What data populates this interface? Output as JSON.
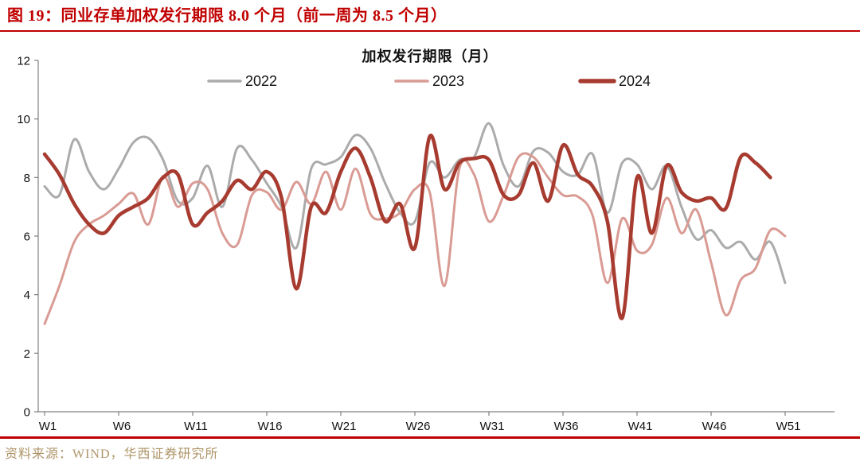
{
  "header": {
    "title": "图 19：同业存单加权发行期限 8.0 个月（前一周为 8.5 个月）"
  },
  "footer": {
    "source": "资料来源：WIND，华西证券研究所"
  },
  "colors": {
    "accent_red": "#c00000",
    "source_tan": "#ae9467",
    "axis_gray": "#808080",
    "series_2022": "#ababab",
    "series_2023": "#d99b94",
    "series_2024": "#a73b30"
  },
  "chart_data": {
    "type": "line",
    "title": "加权发行期限（月）",
    "xlabel": "",
    "ylabel": "",
    "grid": false,
    "legend_position": "top",
    "ylim": [
      0,
      12
    ],
    "y_ticks": [
      0,
      2,
      4,
      6,
      8,
      10,
      12
    ],
    "x_tick_weeks": [
      1,
      6,
      11,
      16,
      21,
      26,
      31,
      36,
      41,
      46,
      51
    ],
    "x_tick_labels": [
      "W1",
      "W6",
      "W11",
      "W16",
      "W21",
      "W26",
      "W31",
      "W36",
      "W41",
      "W46",
      "W51"
    ],
    "x_unit": "week",
    "series": [
      {
        "name": "2022",
        "color": "#ababab",
        "line_width": 3,
        "start_week": 1,
        "values": [
          7.7,
          7.4,
          9.3,
          8.2,
          7.6,
          8.3,
          9.2,
          9.35,
          8.6,
          7.2,
          7.3,
          8.4,
          7.0,
          9.0,
          8.6,
          7.8,
          7.0,
          5.6,
          8.3,
          8.45,
          8.7,
          9.45,
          9.0,
          7.8,
          6.8,
          6.5,
          8.5,
          8.0,
          8.6,
          8.7,
          9.85,
          8.4,
          7.7,
          8.9,
          8.85,
          8.2,
          8.1,
          8.8,
          6.8,
          8.5,
          8.45,
          7.6,
          8.4,
          7.0,
          5.9,
          6.2,
          5.6,
          5.8,
          5.2,
          5.8,
          4.4
        ]
      },
      {
        "name": "2023",
        "color": "#d99b94",
        "line_width": 3,
        "start_week": 1,
        "values": [
          3.0,
          4.3,
          5.8,
          6.4,
          6.7,
          7.1,
          7.45,
          6.4,
          8.05,
          7.0,
          7.8,
          7.6,
          6.1,
          5.7,
          7.4,
          7.5,
          6.9,
          7.85,
          7.1,
          8.2,
          6.9,
          8.3,
          6.75,
          6.6,
          6.8,
          7.6,
          7.5,
          4.3,
          8.3,
          8.1,
          6.5,
          7.4,
          8.7,
          8.7,
          8.0,
          7.4,
          7.35,
          6.7,
          4.4,
          6.6,
          5.5,
          5.7,
          7.3,
          6.1,
          6.9,
          5.1,
          3.3,
          4.5,
          4.9,
          6.2,
          6.0
        ]
      },
      {
        "name": "2024",
        "color": "#a73b30",
        "line_width": 4.5,
        "start_week": 1,
        "values": [
          8.8,
          8.1,
          7.1,
          6.4,
          6.1,
          6.7,
          7.0,
          7.3,
          8.0,
          8.1,
          6.4,
          6.8,
          7.2,
          7.9,
          7.6,
          8.2,
          7.3,
          4.2,
          7.0,
          6.8,
          8.2,
          9.0,
          8.0,
          6.5,
          7.1,
          5.6,
          9.4,
          7.6,
          8.5,
          8.65,
          8.6,
          7.4,
          7.4,
          8.5,
          7.2,
          9.1,
          8.1,
          7.7,
          6.5,
          3.2,
          8.0,
          6.1,
          8.4,
          7.5,
          7.2,
          7.3,
          6.95,
          8.7,
          8.5,
          8.0
        ]
      }
    ],
    "annotations": {
      "latest_value": 8.0,
      "previous_week_value": 8.5
    }
  }
}
